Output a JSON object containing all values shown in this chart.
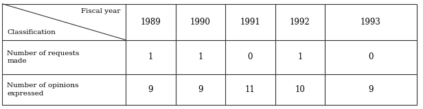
{
  "header_row": [
    "1989",
    "1990",
    "1991",
    "1992",
    "1993"
  ],
  "row1_label": "Number of requests\nmade",
  "row2_label": "Number of opinions\nexpressed",
  "row1_values": [
    "1",
    "1",
    "0",
    "1",
    "0"
  ],
  "row2_values": [
    "9",
    "9",
    "11",
    "10",
    "9"
  ],
  "corner_top": "Fiscal year",
  "corner_bottom": "Classification",
  "bg_color": "#ffffff",
  "border_color": "#333333",
  "font_size": 7.5,
  "value_font_size": 8.5,
  "col_bounds": [
    0.0,
    0.295,
    0.414,
    0.533,
    0.652,
    0.771,
    0.99
  ],
  "row_bounds": [
    0.97,
    0.635,
    0.32,
    0.03
  ]
}
